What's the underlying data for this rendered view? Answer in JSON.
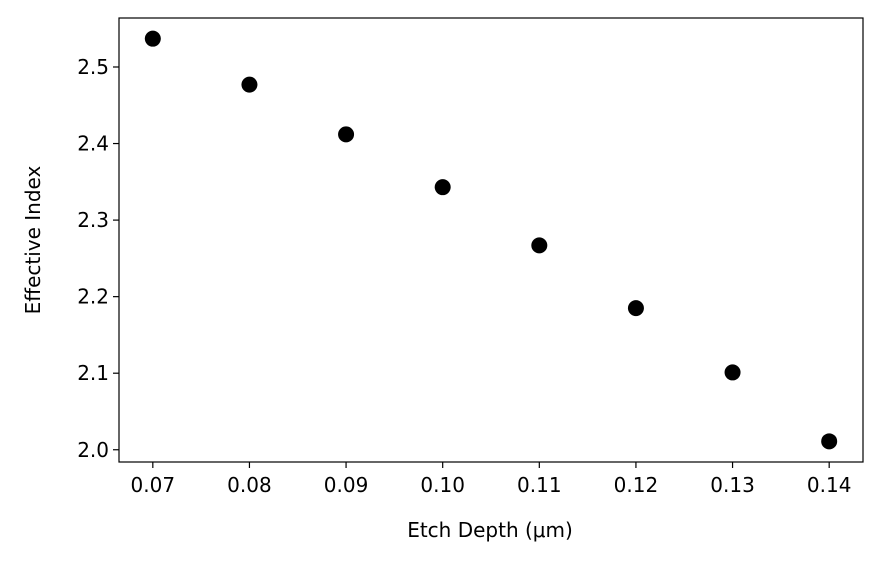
{
  "chart_data": {
    "type": "scatter",
    "xlabel": "Etch Depth (μm)",
    "ylabel": "Effective Index",
    "x": [
      0.07,
      0.08,
      0.09,
      0.1,
      0.11,
      0.12,
      0.13,
      0.14
    ],
    "series": [
      {
        "color": "#000000",
        "values": [
          2.537,
          2.477,
          2.412,
          2.343,
          2.267,
          2.185,
          2.101,
          2.011
        ]
      }
    ],
    "xlim": [
      0.0665,
      0.1435
    ],
    "xticks": [
      0.07,
      0.08,
      0.09,
      {
        "value": 0.1,
        "label": "0.10"
      },
      0.11,
      0.12,
      0.13,
      0.14
    ],
    "ylim": [
      1.984,
      2.564
    ],
    "yticks": [
      {
        "value": 2,
        "label": "2.0"
      },
      2.1,
      2.2,
      2.3,
      2.4,
      2.5
    ]
  }
}
